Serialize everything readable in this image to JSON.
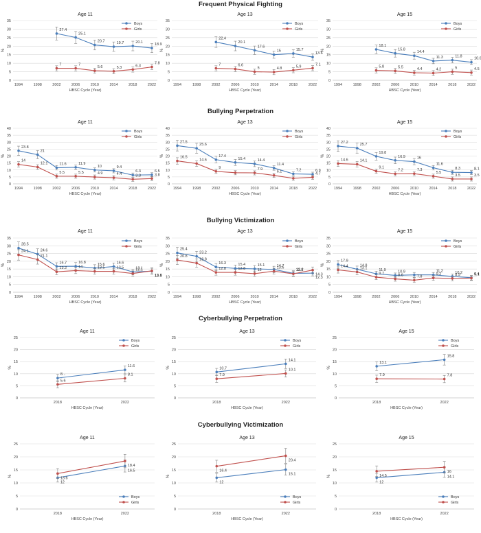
{
  "colors": {
    "boys": "#4a7ebb",
    "girls": "#c0504d",
    "grid": "#d9d9d9",
    "axis": "#a6a6a6",
    "errorbar": "#7f7f7f"
  },
  "legend": {
    "boys": "Boys",
    "girls": "Girls"
  },
  "sections": [
    {
      "title": "Frequent Physical Fighting"
    },
    {
      "title": "Bullying Perpetration"
    },
    {
      "title": "Bullying Victimization"
    },
    {
      "title": "Cyberbullying Perpetration"
    },
    {
      "title": "Cyberbullying Victimization"
    }
  ],
  "chart_data": [
    {
      "type": "line",
      "section": "Frequent Physical Fighting",
      "title": "Age 11",
      "xlabel": "HBSC Cycle (Year)",
      "ylabel": "%",
      "categories": [
        "1994",
        "1998",
        "2002",
        "2006",
        "2010",
        "2014",
        "2018",
        "2022"
      ],
      "ylim": [
        0,
        35
      ],
      "yticks": [
        0,
        5,
        10,
        15,
        20,
        25,
        30,
        35
      ],
      "legend_position": "top-right",
      "series": [
        {
          "name": "Boys",
          "values": [
            null,
            null,
            27.4,
            25.1,
            20.7,
            19.7,
            20.1,
            18.9
          ],
          "labels": [
            "",
            "",
            "27.4",
            "25.1",
            "20.7",
            "19.7",
            "20.1",
            "18.9"
          ]
        },
        {
          "name": "Girls",
          "values": [
            null,
            null,
            7,
            7,
            5.6,
            5.3,
            6.3,
            7.8
          ],
          "labels": [
            "",
            "",
            "7",
            "7",
            "5.6",
            "5.3",
            "6.3",
            "7.8"
          ]
        }
      ]
    },
    {
      "type": "line",
      "section": "Frequent Physical Fighting",
      "title": "Age 13",
      "xlabel": "HBSC Cycle (Year)",
      "ylabel": "%",
      "categories": [
        "1994",
        "1998",
        "2002",
        "2006",
        "2010",
        "2014",
        "2018",
        "2022"
      ],
      "ylim": [
        0,
        35
      ],
      "yticks": [
        0,
        5,
        10,
        15,
        20,
        25,
        30,
        35
      ],
      "legend_position": "top-right",
      "series": [
        {
          "name": "Boys",
          "values": [
            null,
            null,
            22.4,
            20.1,
            17.6,
            15,
            15.7,
            13.6
          ],
          "labels": [
            "",
            "",
            "22.4",
            "20.1",
            "17.6",
            "15",
            "15.7",
            "13.6"
          ]
        },
        {
          "name": "Girls",
          "values": [
            null,
            null,
            7,
            6.6,
            5,
            4.8,
            5.9,
            7.1
          ],
          "labels": [
            "",
            "",
            "7",
            "6.6",
            "5",
            "4.8",
            "5.9",
            "7.1"
          ]
        }
      ]
    },
    {
      "type": "line",
      "section": "Frequent Physical Fighting",
      "title": "Age 15",
      "xlabel": "HBSC Cycle (Year)",
      "ylabel": "%",
      "categories": [
        "1994",
        "1998",
        "2002",
        "2006",
        "2010",
        "2014",
        "2018",
        "2022"
      ],
      "ylim": [
        0,
        35
      ],
      "yticks": [
        0,
        5,
        10,
        15,
        20,
        25,
        30,
        35
      ],
      "legend_position": "top-right",
      "series": [
        {
          "name": "Boys",
          "values": [
            null,
            null,
            18.1,
            15.8,
            14.4,
            11.3,
            11.8,
            10.6
          ],
          "labels": [
            "",
            "",
            "18.1",
            "15.8",
            "14.4",
            "11.3",
            "11.8",
            "10.6"
          ]
        },
        {
          "name": "Girls",
          "values": [
            null,
            null,
            5.8,
            5.5,
            4.4,
            4.2,
            5,
            4.5
          ],
          "labels": [
            "",
            "",
            "5.8",
            "5.5",
            "4.4",
            "4.2",
            "5",
            "4.5"
          ]
        }
      ]
    },
    {
      "type": "line",
      "section": "Bullying Perpetration",
      "title": "Age 11",
      "xlabel": "HBSC Cycle (Year)",
      "ylabel": "%",
      "categories": [
        "1994",
        "1998",
        "2002",
        "2006",
        "2010",
        "2014",
        "2018",
        "2022"
      ],
      "ylim": [
        0,
        40
      ],
      "yticks": [
        0,
        5,
        10,
        15,
        20,
        25,
        30,
        35,
        40
      ],
      "legend_position": "top-right",
      "series": [
        {
          "name": "Boys",
          "values": [
            23.8,
            21,
            11.6,
            11.9,
            10,
            9.4,
            6.3,
            6.5
          ],
          "labels": [
            "23.8",
            "21",
            "11.6",
            "11.9",
            "10",
            "9.4",
            "6.3",
            "6.5"
          ]
        },
        {
          "name": "Girls",
          "values": [
            14,
            12.1,
            5.5,
            5.5,
            4.9,
            4.4,
            3.3,
            3.8
          ],
          "labels": [
            "14",
            "12.1",
            "5.5",
            "5.5",
            "4.9",
            "4.4",
            "3.3",
            "3.8"
          ]
        }
      ]
    },
    {
      "type": "line",
      "section": "Bullying Perpetration",
      "title": "Age 13",
      "xlabel": "HBSC Cycle (Year)",
      "ylabel": "%",
      "categories": [
        "1994",
        "1998",
        "2002",
        "2006",
        "2010",
        "2014",
        "2018",
        "2022"
      ],
      "ylim": [
        0,
        40
      ],
      "yticks": [
        0,
        5,
        10,
        15,
        20,
        25,
        30,
        35,
        40
      ],
      "legend_position": "top-right",
      "series": [
        {
          "name": "Boys",
          "values": [
            27.5,
            25.6,
            17.4,
            15.4,
            14.4,
            11.4,
            7.2,
            6.9
          ],
          "labels": [
            "27.5",
            "25.6",
            "17.4",
            "15.4",
            "14.4",
            "11.4",
            "7.2",
            "6.9"
          ]
        },
        {
          "name": "Girls",
          "values": [
            16.5,
            14.6,
            9,
            8,
            7.9,
            6.1,
            4,
            4.7
          ],
          "labels": [
            "16.5",
            "14.6",
            "9",
            "",
            "7.9",
            "6.1",
            "",
            "4.7"
          ]
        }
      ]
    },
    {
      "type": "line",
      "section": "Bullying Perpetration",
      "title": "Age 15",
      "xlabel": "HBSC Cycle (Year)",
      "ylabel": "%",
      "categories": [
        "1994",
        "1998",
        "2002",
        "2006",
        "2010",
        "2014",
        "2018",
        "2022"
      ],
      "ylim": [
        0,
        40
      ],
      "yticks": [
        0,
        5,
        10,
        15,
        20,
        25,
        30,
        35,
        40
      ],
      "legend_position": "top-right",
      "series": [
        {
          "name": "Boys",
          "values": [
            27.2,
            25.7,
            19.8,
            16.9,
            16,
            11.6,
            8.3,
            8.1
          ],
          "labels": [
            "27.2",
            "25.7",
            "19.8",
            "16.9",
            "16",
            "11.6",
            "8.3",
            "8.1"
          ]
        },
        {
          "name": "Girls",
          "values": [
            14.6,
            14.1,
            9.1,
            7.2,
            7.3,
            5.5,
            3.5,
            3.5
          ],
          "labels": [
            "14.6",
            "14.1",
            "9.1",
            "7.2",
            "7.3",
            "5.5",
            "3.5",
            "3.5"
          ]
        }
      ]
    },
    {
      "type": "line",
      "section": "Bullying Victimization",
      "title": "Age 11",
      "xlabel": "HBSC Cycle (Year)",
      "ylabel": "%",
      "categories": [
        "1994",
        "1998",
        "2002",
        "2006",
        "2010",
        "2014",
        "2018",
        "2022"
      ],
      "ylim": [
        0,
        35
      ],
      "yticks": [
        0,
        5,
        10,
        15,
        20,
        25,
        30,
        35
      ],
      "legend_position": "top-right",
      "series": [
        {
          "name": "Boys",
          "values": [
            28.5,
            24.6,
            16.7,
            16.8,
            15.6,
            16.6,
            13.1,
            13.6
          ],
          "labels": [
            "28.5",
            "24.6",
            "16.7",
            "16.8",
            "15.6",
            "16.6",
            "13.1",
            "13.6"
          ]
        },
        {
          "name": "Girls",
          "values": [
            24.1,
            21.1,
            13.2,
            14,
            13.5,
            13.5,
            12.1,
            13.8
          ],
          "labels": [
            "24.1",
            "21.1",
            "13.2",
            "14",
            "13.5",
            "13.5",
            "12.1",
            "13.8"
          ]
        }
      ]
    },
    {
      "type": "line",
      "section": "Bullying Victimization",
      "title": "Age 13",
      "xlabel": "HBSC Cycle (Year)",
      "ylabel": "%",
      "categories": [
        "1994",
        "1998",
        "2002",
        "2006",
        "2010",
        "2014",
        "2018",
        "2022"
      ],
      "ylim": [
        0,
        35
      ],
      "yticks": [
        0,
        5,
        10,
        15,
        20,
        25,
        30,
        35
      ],
      "legend_position": "top-right",
      "series": [
        {
          "name": "Boys",
          "values": [
            25.4,
            23.2,
            16.3,
            15.4,
            15.1,
            14.7,
            12.2,
            12.3
          ],
          "labels": [
            "25.4",
            "23.2",
            "16.3",
            "15.4",
            "15.1",
            "14.7",
            "12.2",
            "12.3"
          ]
        },
        {
          "name": "Girls",
          "values": [
            20.8,
            18.8,
            12.8,
            12.8,
            12,
            13.6,
            11.9,
            14.3
          ],
          "labels": [
            "20.8",
            "18.8",
            "12.8",
            "12.8",
            "12",
            "13.6",
            "11.9",
            "14.3"
          ]
        }
      ]
    },
    {
      "type": "line",
      "section": "Bullying Victimization",
      "title": "Age 15",
      "xlabel": "HBSC Cycle (Year)",
      "ylabel": "%",
      "categories": [
        "1994",
        "1998",
        "2002",
        "2006",
        "2010",
        "2014",
        "2018",
        "2022"
      ],
      "ylim": [
        0,
        35
      ],
      "yticks": [
        0,
        5,
        10,
        15,
        20,
        25,
        30,
        35
      ],
      "legend_position": "top-right",
      "series": [
        {
          "name": "Boys",
          "values": [
            17.9,
            14.8,
            11.9,
            10.9,
            11.2,
            11.2,
            10.2,
            9.4
          ],
          "labels": [
            "17.9",
            "14.8",
            "11.9",
            "10.9",
            "",
            "11.2",
            "10.2",
            "9.4"
          ]
        },
        {
          "name": "Girls",
          "values": [
            14.4,
            13.1,
            9.7,
            8.6,
            7.8,
            9.2,
            8.9,
            9.1
          ],
          "labels": [
            "14.4",
            "13.1",
            "9.7",
            "8.6",
            "7.8",
            "9.2",
            "8.9",
            "9.1"
          ]
        }
      ]
    },
    {
      "type": "line",
      "section": "Cyberbullying Perpetration",
      "title": "Age 11",
      "xlabel": "HBSC Cycle (Year)",
      "ylabel": "%",
      "categories": [
        "2018",
        "2022"
      ],
      "ylim": [
        0,
        25
      ],
      "yticks": [
        0,
        5,
        10,
        15,
        20,
        25
      ],
      "legend_position": "top-right",
      "series": [
        {
          "name": "Boys",
          "values": [
            8.2,
            11.6
          ],
          "labels": [
            "8...",
            "11.6"
          ]
        },
        {
          "name": "Girls",
          "values": [
            5.6,
            8.1
          ],
          "labels": [
            "5.6",
            "8.1"
          ]
        }
      ]
    },
    {
      "type": "line",
      "section": "Cyberbullying Perpetration",
      "title": "Age 13",
      "xlabel": "HBSC Cycle (Year)",
      "ylabel": "%",
      "categories": [
        "2018",
        "2022"
      ],
      "ylim": [
        0,
        25
      ],
      "yticks": [
        0,
        5,
        10,
        15,
        20,
        25
      ],
      "legend_position": "top-right",
      "series": [
        {
          "name": "Boys",
          "values": [
            10.7,
            14.1
          ],
          "labels": [
            "10.7",
            "14.1"
          ]
        },
        {
          "name": "Girls",
          "values": [
            7.9,
            10.1
          ],
          "labels": [
            "7.9",
            "10.1"
          ]
        }
      ]
    },
    {
      "type": "line",
      "section": "Cyberbullying Perpetration",
      "title": "Age 15",
      "xlabel": "HBSC Cycle (Year)",
      "ylabel": "%",
      "categories": [
        "2018",
        "2022"
      ],
      "ylim": [
        0,
        25
      ],
      "yticks": [
        0,
        5,
        10,
        15,
        20,
        25
      ],
      "legend_position": "top-right",
      "series": [
        {
          "name": "Boys",
          "values": [
            13.1,
            15.8
          ],
          "labels": [
            "13.1",
            "15.8"
          ]
        },
        {
          "name": "Girls",
          "values": [
            7.9,
            7.8
          ],
          "labels": [
            "7.9",
            "7.8"
          ]
        }
      ]
    },
    {
      "type": "line",
      "section": "Cyberbullying Victimization",
      "title": "Age 11",
      "xlabel": "HBSC Cycle (Year)",
      "ylabel": "%",
      "categories": [
        "2018",
        "2022"
      ],
      "ylim": [
        0,
        25
      ],
      "yticks": [
        0,
        5,
        10,
        15,
        20,
        25
      ],
      "legend_position": "bottom-right",
      "series": [
        {
          "name": "Boys",
          "values": [
            12,
            16.5
          ],
          "labels": [
            "12",
            "16.5"
          ]
        },
        {
          "name": "Girls",
          "values": [
            13.6,
            18.4
          ],
          "labels": [
            "13.6",
            "18.4"
          ]
        }
      ]
    },
    {
      "type": "line",
      "section": "Cyberbullying Victimization",
      "title": "Age 13",
      "xlabel": "HBSC Cycle (Year)",
      "ylabel": "%",
      "categories": [
        "2018",
        "2022"
      ],
      "ylim": [
        0,
        25
      ],
      "yticks": [
        0,
        5,
        10,
        15,
        20,
        25
      ],
      "legend_position": "bottom-right",
      "series": [
        {
          "name": "Boys",
          "values": [
            12,
            15.1
          ],
          "labels": [
            "12",
            "15.1"
          ]
        },
        {
          "name": "Girls",
          "values": [
            16.4,
            20.4
          ],
          "labels": [
            "16.4",
            "20.4"
          ]
        }
      ]
    },
    {
      "type": "line",
      "section": "Cyberbullying Victimization",
      "title": "Age 15",
      "xlabel": "HBSC Cycle (Year)",
      "ylabel": "%",
      "categories": [
        "2018",
        "2022"
      ],
      "ylim": [
        0,
        25
      ],
      "yticks": [
        0,
        5,
        10,
        15,
        20,
        25
      ],
      "legend_position": "bottom-right",
      "series": [
        {
          "name": "Boys",
          "values": [
            12,
            14.1
          ],
          "labels": [
            "12",
            "14.1"
          ]
        },
        {
          "name": "Girls",
          "values": [
            14.5,
            16
          ],
          "labels": [
            "14.5",
            "16"
          ]
        }
      ]
    }
  ]
}
